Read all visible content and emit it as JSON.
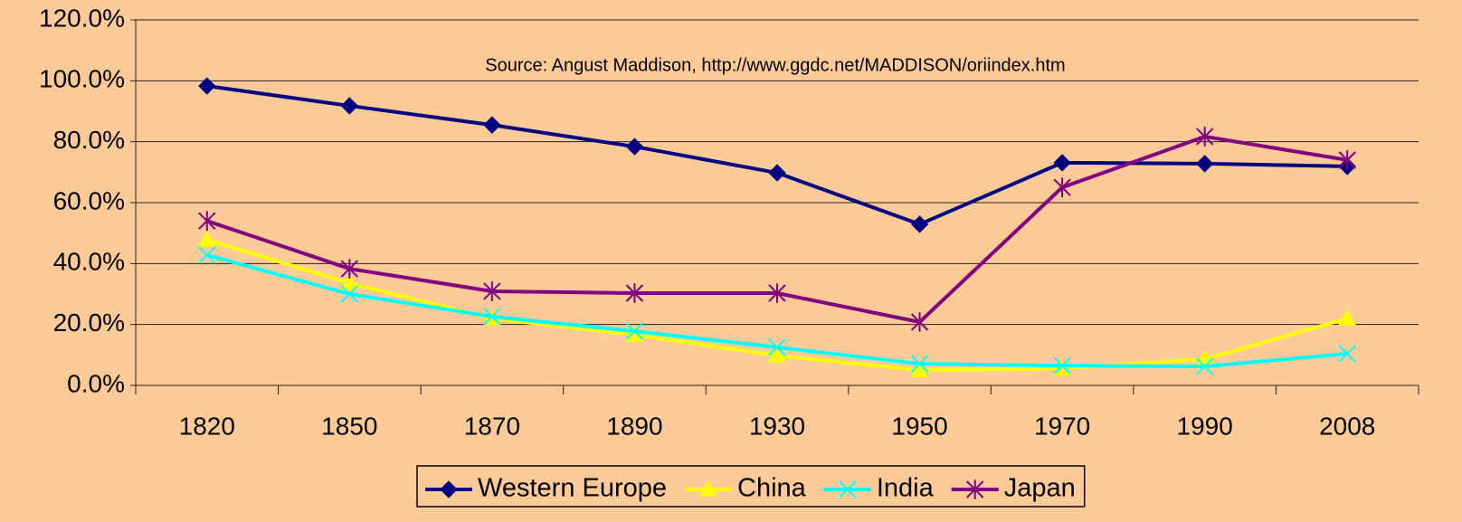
{
  "chart_data": {
    "type": "line",
    "annotation": "Source: Angust Maddison, http://www.ggdc.net/MADDISON/oriindex.htm",
    "categories": [
      "1820",
      "1850",
      "1870",
      "1890",
      "1930",
      "1950",
      "1970",
      "1990",
      "2008"
    ],
    "series": [
      {
        "name": "Western Europe",
        "color": "#000080",
        "marker": "diamond",
        "values": [
          98.3,
          91.8,
          85.5,
          78.4,
          69.8,
          52.9,
          73.1,
          72.8,
          71.9
        ]
      },
      {
        "name": "China",
        "color": "#ffff00",
        "marker": "triangle",
        "values": [
          47.8,
          33.6,
          22,
          16.6,
          9.8,
          5,
          5.6,
          8.6,
          22
        ]
      },
      {
        "name": "India",
        "color": "#00ffff",
        "marker": "x",
        "values": [
          42.8,
          30,
          22.6,
          17.8,
          12.5,
          7.1,
          6.5,
          6.2,
          10.4
        ]
      },
      {
        "name": "Japan",
        "color": "#800080",
        "marker": "star",
        "values": [
          54,
          38.3,
          30.9,
          30.3,
          30.3,
          20.8,
          65,
          81.7,
          74
        ]
      }
    ],
    "ylim": [
      0,
      120
    ],
    "yticks": [
      {
        "value": 0,
        "label": "0.0%"
      },
      {
        "value": 20,
        "label": "20.0%"
      },
      {
        "value": 40,
        "label": "40.0%"
      },
      {
        "value": 60,
        "label": "60.0%"
      },
      {
        "value": 80,
        "label": "80.0%"
      },
      {
        "value": 100,
        "label": "100.0%"
      },
      {
        "value": 120,
        "label": "120.0%"
      }
    ],
    "grid": true,
    "legend": "bottom"
  }
}
